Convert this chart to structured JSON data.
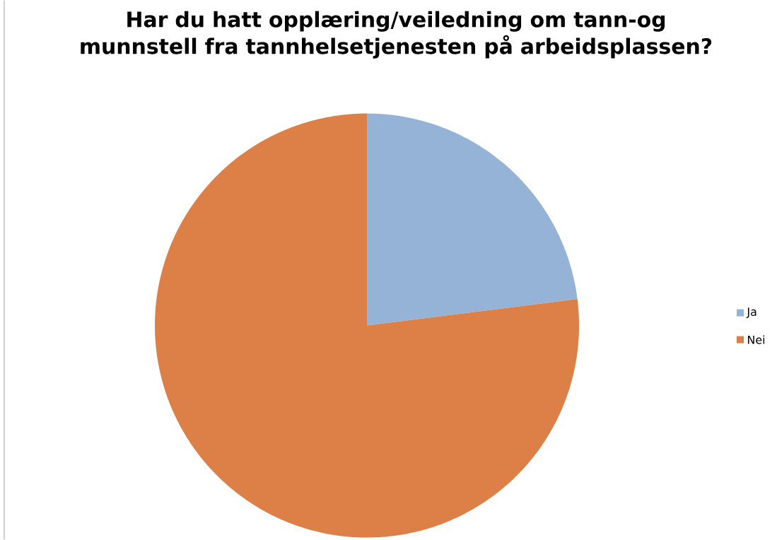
{
  "chart_data": {
    "type": "pie",
    "title": "Har du hatt opplæring/veiledning om tann-og munnstell fra tannhelsetjenesten på arbeidsplassen?",
    "categories": [
      "Ja",
      "Nei"
    ],
    "values": [
      23,
      77
    ],
    "colors": [
      "#95b3d7",
      "#dd8047"
    ],
    "legend": "right"
  }
}
